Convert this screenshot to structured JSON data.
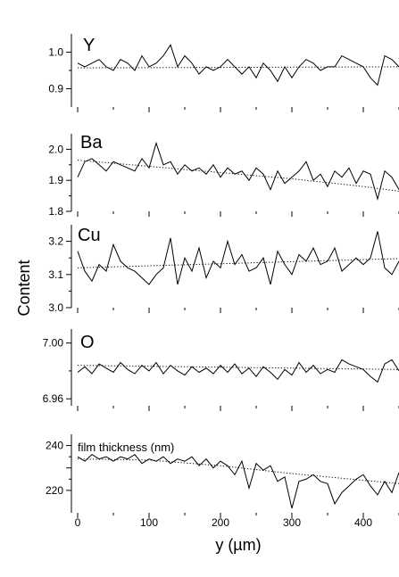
{
  "figure": {
    "ylabel": "Content",
    "xlabel": "y  (µm)",
    "x_ticks": [
      0,
      100,
      200,
      300,
      400
    ],
    "x_range": [
      0,
      450
    ]
  },
  "chart_data": [
    {
      "type": "line",
      "title": "Y",
      "ylim": [
        0.85,
        1.05
      ],
      "yticks": [
        0.9,
        1.0
      ],
      "ytick_labels": [
        "0.9",
        "1.0"
      ],
      "trend": {
        "x": [
          0,
          450
        ],
        "y": [
          0.957,
          0.96
        ]
      },
      "x": [
        0,
        10,
        20,
        30,
        40,
        50,
        60,
        70,
        80,
        90,
        100,
        110,
        120,
        130,
        140,
        150,
        160,
        170,
        180,
        190,
        200,
        210,
        220,
        230,
        240,
        250,
        260,
        270,
        280,
        290,
        300,
        310,
        320,
        330,
        340,
        350,
        360,
        370,
        380,
        390,
        400,
        410,
        420,
        430,
        440,
        450
      ],
      "values": [
        0.97,
        0.96,
        0.97,
        0.98,
        0.96,
        0.95,
        0.98,
        0.97,
        0.95,
        0.99,
        0.96,
        0.97,
        0.99,
        1.02,
        0.96,
        0.99,
        0.97,
        0.94,
        0.96,
        0.95,
        0.96,
        0.98,
        0.96,
        0.94,
        0.96,
        0.93,
        0.97,
        0.95,
        0.92,
        0.96,
        0.93,
        0.96,
        0.98,
        0.97,
        0.95,
        0.96,
        0.96,
        0.99,
        0.98,
        0.97,
        0.96,
        0.93,
        0.91,
        0.99,
        0.98,
        0.96
      ]
    },
    {
      "type": "line",
      "title": "Ba",
      "ylim": [
        1.8,
        2.05
      ],
      "yticks": [
        1.8,
        1.9,
        2.0
      ],
      "ytick_labels": [
        "1.8",
        "1.9",
        "2.0"
      ],
      "trend": {
        "x": [
          0,
          100,
          200,
          300,
          400,
          450
        ],
        "y": [
          1.965,
          1.945,
          1.925,
          1.905,
          1.88,
          1.865
        ]
      },
      "x": [
        0,
        10,
        20,
        30,
        40,
        50,
        60,
        70,
        80,
        90,
        100,
        110,
        120,
        130,
        140,
        150,
        160,
        170,
        180,
        190,
        200,
        210,
        220,
        230,
        240,
        250,
        260,
        270,
        280,
        290,
        300,
        310,
        320,
        330,
        340,
        350,
        360,
        370,
        380,
        390,
        400,
        410,
        420,
        430,
        440,
        450
      ],
      "values": [
        1.91,
        1.96,
        1.97,
        1.95,
        1.93,
        1.96,
        1.95,
        1.94,
        1.93,
        1.97,
        1.94,
        2.02,
        1.95,
        1.96,
        1.92,
        1.95,
        1.93,
        1.94,
        1.92,
        1.95,
        1.91,
        1.94,
        1.92,
        1.93,
        1.9,
        1.94,
        1.92,
        1.87,
        1.93,
        1.89,
        1.91,
        1.93,
        1.96,
        1.9,
        1.92,
        1.88,
        1.93,
        1.91,
        1.94,
        1.89,
        1.93,
        1.92,
        1.84,
        1.93,
        1.91,
        1.87
      ]
    },
    {
      "type": "line",
      "title": "Cu",
      "ylim": [
        3.0,
        3.25
      ],
      "yticks": [
        3.0,
        3.1,
        3.2
      ],
      "ytick_labels": [
        "3.0",
        "3.1",
        "3.2"
      ],
      "trend": {
        "x": [
          0,
          450
        ],
        "y": [
          3.12,
          3.148
        ]
      },
      "x": [
        0,
        10,
        20,
        30,
        40,
        50,
        60,
        70,
        80,
        90,
        100,
        110,
        120,
        130,
        140,
        150,
        160,
        170,
        180,
        190,
        200,
        210,
        220,
        230,
        240,
        250,
        260,
        270,
        280,
        290,
        300,
        310,
        320,
        330,
        340,
        350,
        360,
        370,
        380,
        390,
        400,
        410,
        420,
        430,
        440,
        450
      ],
      "values": [
        3.17,
        3.11,
        3.08,
        3.13,
        3.11,
        3.19,
        3.14,
        3.12,
        3.11,
        3.09,
        3.07,
        3.1,
        3.12,
        3.21,
        3.07,
        3.15,
        3.11,
        3.18,
        3.09,
        3.14,
        3.12,
        3.2,
        3.13,
        3.16,
        3.11,
        3.12,
        3.15,
        3.07,
        3.17,
        3.13,
        3.1,
        3.16,
        3.14,
        3.18,
        3.13,
        3.14,
        3.18,
        3.11,
        3.13,
        3.15,
        3.13,
        3.15,
        3.23,
        3.12,
        3.1,
        3.14
      ]
    },
    {
      "type": "line",
      "title": "O",
      "ylim": [
        6.955,
        7.01
      ],
      "yticks": [
        6.96,
        7.0
      ],
      "ytick_labels": [
        "6.96",
        "7.00"
      ],
      "trend": {
        "x": [
          0,
          450
        ],
        "y": [
          6.984,
          6.981
        ]
      },
      "x": [
        0,
        10,
        20,
        30,
        40,
        50,
        60,
        70,
        80,
        90,
        100,
        110,
        120,
        130,
        140,
        150,
        160,
        170,
        180,
        190,
        200,
        210,
        220,
        230,
        240,
        250,
        260,
        270,
        280,
        290,
        300,
        310,
        320,
        330,
        340,
        350,
        360,
        370,
        380,
        390,
        400,
        410,
        420,
        430,
        440,
        450
      ],
      "values": [
        6.979,
        6.983,
        6.978,
        6.985,
        6.982,
        6.979,
        6.986,
        6.981,
        6.978,
        6.984,
        6.98,
        6.986,
        6.978,
        6.984,
        6.98,
        6.977,
        6.983,
        6.979,
        6.982,
        6.978,
        6.984,
        6.979,
        6.985,
        6.978,
        6.982,
        6.976,
        6.983,
        6.979,
        6.974,
        6.981,
        6.977,
        6.986,
        6.979,
        6.984,
        6.978,
        6.981,
        6.979,
        6.988,
        6.985,
        6.983,
        6.981,
        6.976,
        6.972,
        6.985,
        6.988,
        6.98
      ]
    },
    {
      "type": "line",
      "title": "film thickness (nm)",
      "ylim": [
        210,
        245
      ],
      "yticks": [
        220,
        230,
        240
      ],
      "ytick_labels": [
        "220",
        "",
        "240"
      ],
      "trend": {
        "x": [
          0,
          100,
          200,
          300,
          400,
          450
        ],
        "y": [
          234,
          233.5,
          231,
          227.5,
          224.5,
          223
        ]
      },
      "x": [
        0,
        10,
        20,
        30,
        40,
        50,
        60,
        70,
        80,
        90,
        100,
        110,
        120,
        130,
        140,
        150,
        160,
        170,
        180,
        190,
        200,
        210,
        220,
        230,
        240,
        250,
        260,
        270,
        280,
        290,
        300,
        310,
        320,
        330,
        340,
        350,
        360,
        370,
        380,
        390,
        400,
        410,
        420,
        430,
        440,
        450
      ],
      "values": [
        235,
        233,
        236,
        234,
        235,
        233,
        235,
        234,
        236,
        232,
        234,
        233,
        235,
        232,
        234,
        233,
        235,
        231,
        234,
        230,
        233,
        231,
        227,
        233,
        221,
        232,
        229,
        231,
        224,
        226,
        212,
        224,
        225,
        227,
        224,
        223,
        214,
        219,
        222,
        225,
        227,
        222,
        218,
        224,
        219,
        228
      ]
    }
  ]
}
